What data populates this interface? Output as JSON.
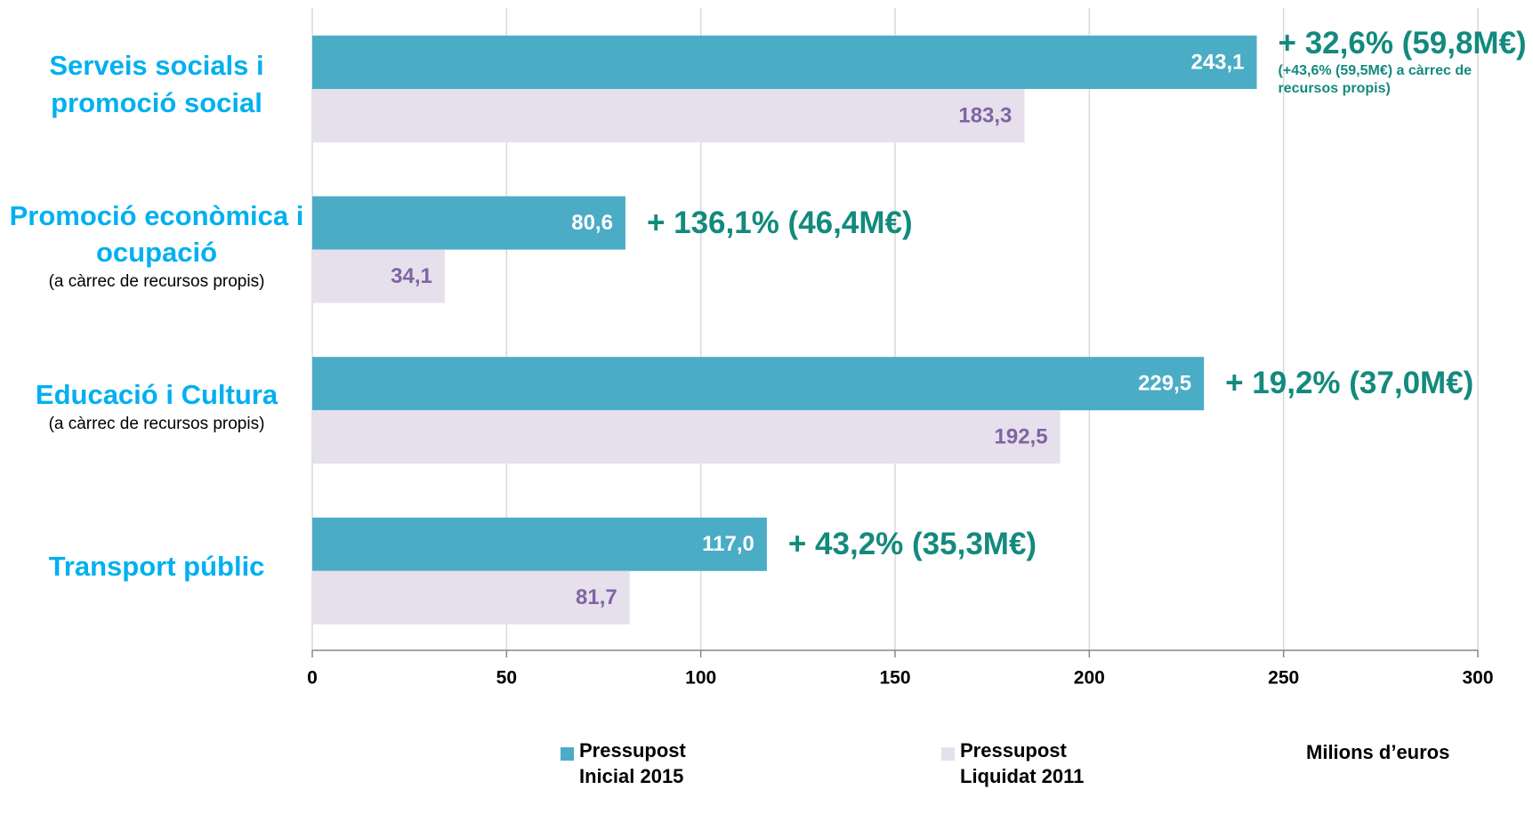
{
  "chart_data": {
    "type": "bar",
    "orientation": "horizontal",
    "categories": [
      "Serveis socials i promoció social",
      "Promoció econòmica i ocupació",
      "Educació i Cultura",
      "Transport públic"
    ],
    "category_notes": [
      null,
      "(a càrrec de recursos propis)",
      "(a càrrec de recursos propis)",
      null
    ],
    "series": [
      {
        "name": "Pressupost Inicial 2015",
        "color": "#4bacc6",
        "label_color": "#ffffff",
        "values": [
          243.1,
          80.6,
          229.5,
          117.0
        ],
        "value_labels": [
          "243,1",
          "80,6",
          "229,5",
          "117,0"
        ]
      },
      {
        "name": "Pressupost Liquidat 2011",
        "color": "#e6e0ec",
        "label_color": "#8064a2",
        "values": [
          183.3,
          34.1,
          192.5,
          81.7
        ],
        "value_labels": [
          "183,3",
          "34,1",
          "192,5",
          "81,7"
        ]
      }
    ],
    "annotations": [
      {
        "text": "+ 32,6% (59,8M€)",
        "note": "(+43,6% (59,5M€) a càrrec de recursos propis)"
      },
      {
        "text": "+ 136,1% (46,4M€)",
        "note": null
      },
      {
        "text": "+ 19,2% (37,0M€)",
        "note": null
      },
      {
        "text": "+ 43,2% (35,3M€)",
        "note": null
      }
    ],
    "xlabel": "Milions d’euros",
    "xlim": [
      0,
      300
    ],
    "xticks": [
      0,
      50,
      100,
      150,
      200,
      250,
      300
    ],
    "grid": true,
    "legend": "bottom"
  }
}
